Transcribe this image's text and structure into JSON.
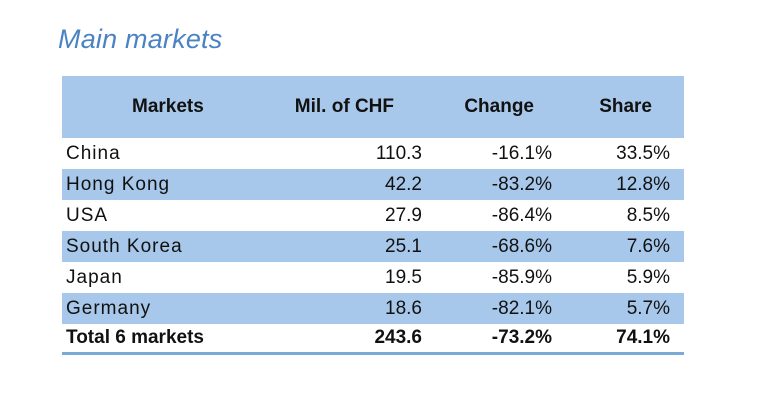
{
  "title": "Main markets",
  "chart_data": {
    "type": "table",
    "columns": [
      "Markets",
      "Mil. of CHF",
      "Change",
      "Share"
    ],
    "rows": [
      {
        "market": "China",
        "chf": "110.3",
        "change": "-16.1%",
        "share": "33.5%"
      },
      {
        "market": "Hong Kong",
        "chf": "42.2",
        "change": "-83.2%",
        "share": "12.8%"
      },
      {
        "market": "USA",
        "chf": "27.9",
        "change": "-86.4%",
        "share": "8.5%"
      },
      {
        "market": "South Korea",
        "chf": "25.1",
        "change": "-68.6%",
        "share": "7.6%"
      },
      {
        "market": "Japan",
        "chf": "19.5",
        "change": "-85.9%",
        "share": "5.9%"
      },
      {
        "market": "Germany",
        "chf": "18.6",
        "change": "-82.1%",
        "share": "5.7%"
      }
    ],
    "total": {
      "market": "Total 6 markets",
      "chf": "243.6",
      "change": "-73.2%",
      "share": "74.1%"
    }
  },
  "colors": {
    "title": "#4a83c4",
    "header_bg": "#a7c8ea",
    "stripe_bg": "#a7c8ea",
    "total_border": "#7ba9d8"
  }
}
